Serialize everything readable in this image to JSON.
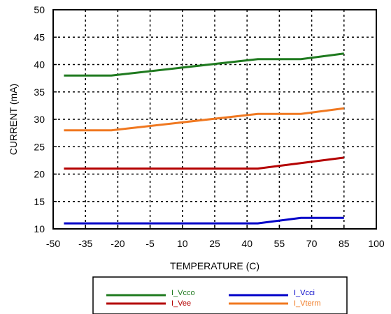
{
  "chart_data": {
    "type": "line",
    "xlabel": "TEMPERATURE (C)",
    "ylabel": "CURRENT (mA)",
    "xlim": [
      -50,
      100
    ],
    "ylim": [
      10,
      50
    ],
    "xticks": [
      -50,
      -35,
      -20,
      -5,
      10,
      25,
      40,
      55,
      70,
      85,
      100
    ],
    "yticks": [
      10,
      15,
      20,
      25,
      30,
      35,
      40,
      45,
      50
    ],
    "grid": true,
    "legend_position": "bottom-center",
    "series": [
      {
        "name": "I_Vcco",
        "color": "#1f7a1f",
        "x": [
          -45,
          -23,
          45,
          65,
          85
        ],
        "y": [
          38,
          38,
          41,
          41,
          42
        ]
      },
      {
        "name": "I_Vcci",
        "color": "#0000c8",
        "x": [
          -45,
          -23,
          45,
          65,
          85
        ],
        "y": [
          11,
          11,
          11,
          12,
          12
        ]
      },
      {
        "name": "I_Vee",
        "color": "#b40000",
        "x": [
          -45,
          -23,
          45,
          65,
          85
        ],
        "y": [
          21,
          21,
          21,
          22,
          23
        ]
      },
      {
        "name": "I_Vterm",
        "color": "#f07820",
        "x": [
          -45,
          -23,
          45,
          65,
          85
        ],
        "y": [
          28,
          28,
          31,
          31,
          32
        ]
      }
    ]
  }
}
